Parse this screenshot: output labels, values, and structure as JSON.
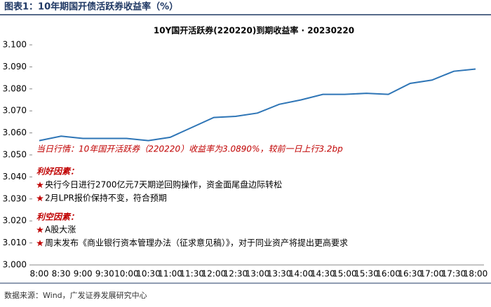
{
  "header": "图表1：10年期国开债活跃券收益率（%）",
  "source": "数据来源：Wind，广发证券发展研究中心",
  "chart_data": {
    "type": "line",
    "title": "10Y国开活跃券(220220)到期收益率 · 20230220",
    "categories": [
      "8:00",
      "8:30",
      "9:00",
      "9:30",
      "10:00",
      "10:30",
      "11:00",
      "11:30",
      "12:00",
      "12:30",
      "13:00",
      "13:30",
      "14:00",
      "14:30",
      "15:00",
      "15:30",
      "16:00",
      "16:30",
      "17:00",
      "17:30",
      "18:00"
    ],
    "series": [
      {
        "color": "#2e75b6",
        "values": [
          3.0565,
          3.0585,
          3.0575,
          3.0575,
          3.0575,
          3.0565,
          3.058,
          3.0625,
          3.067,
          3.0675,
          3.069,
          3.073,
          3.075,
          3.0775,
          3.0775,
          3.078,
          3.0775,
          3.0825,
          3.084,
          3.088,
          3.089
        ]
      }
    ],
    "ylim": [
      3.0,
      3.1
    ],
    "yticks": [
      {
        "value": 3.0,
        "label": "3.000"
      },
      {
        "value": 3.01,
        "label": "3.010"
      },
      {
        "value": 3.02,
        "label": "3.020"
      },
      {
        "value": 3.03,
        "label": "3.030"
      },
      {
        "value": 3.04,
        "label": "3.040"
      },
      {
        "value": 3.05,
        "label": "3.050"
      },
      {
        "value": 3.06,
        "label": "3.060"
      },
      {
        "value": 3.07,
        "label": "3.070"
      },
      {
        "value": 3.08,
        "label": "3.080"
      },
      {
        "value": 3.09,
        "label": "3.090"
      },
      {
        "value": 3.1,
        "label": "3.100"
      }
    ],
    "annotations": {
      "today": "当日行情：10年国开活跃券（220220）收益率为3.0890%，较前一日上行3.2bp",
      "positive_title": "利好因素：",
      "positive": [
        "央行今日进行2700亿元7天期逆回购操作，资金面尾盘边际转松",
        "2月LPR报价保持不变，符合预期"
      ],
      "negative_title": "利空因素：",
      "negative": [
        "A股大涨",
        "周末发布《商业银行资本管理办法（征求意见稿）》，对于同业资产将提出更高要求"
      ]
    }
  }
}
